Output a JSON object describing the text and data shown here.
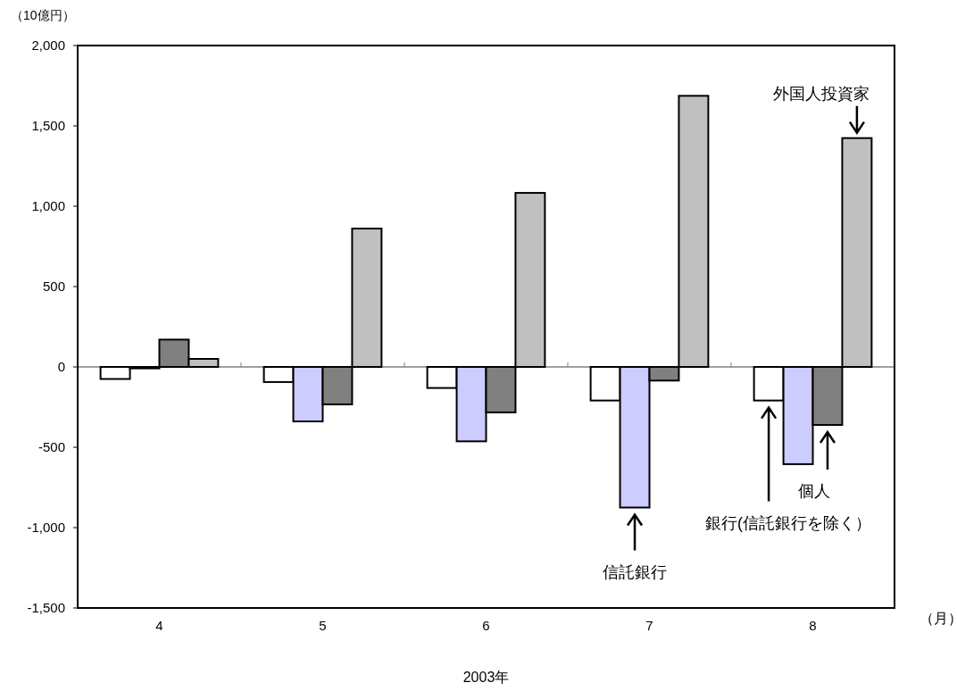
{
  "chart_data": {
    "type": "bar",
    "ylabel": "（10億円）",
    "xlabel": "2003年",
    "categories": [
      "4",
      "5",
      "6",
      "7",
      "8"
    ],
    "series": [
      {
        "name": "銀行(信託銀行を除く）",
        "color": "#ffffff",
        "values": [
          -75,
          -94,
          -131,
          -209,
          -209
        ]
      },
      {
        "name": "信託銀行",
        "color": "#ccccff",
        "values": [
          -9,
          -339,
          -463,
          -875,
          -605
        ]
      },
      {
        "name": "個人",
        "color": "#808080",
        "values": [
          170,
          -233,
          -283,
          -85,
          -361
        ]
      },
      {
        "name": "外国人投資家",
        "color": "#c0c0c0",
        "values": [
          50,
          861,
          1083,
          1687,
          1424
        ]
      }
    ],
    "ylim": [
      -1500,
      2000
    ],
    "yticks": [
      {
        "value": -1500,
        "label": "-1,500"
      },
      {
        "value": -1000,
        "label": "-1,000"
      },
      {
        "value": -500,
        "label": "-500"
      },
      0,
      500,
      {
        "value": 1000,
        "label": "1,000"
      },
      {
        "value": 1500,
        "label": "1,500"
      },
      {
        "value": 2000,
        "label": "2,000"
      }
    ],
    "ref_lines": [
      {
        "axis": "y",
        "value": 0,
        "color": "#808080"
      }
    ],
    "grid": false,
    "legend": "bottom right",
    "annotations": [
      "（月）"
    ]
  }
}
